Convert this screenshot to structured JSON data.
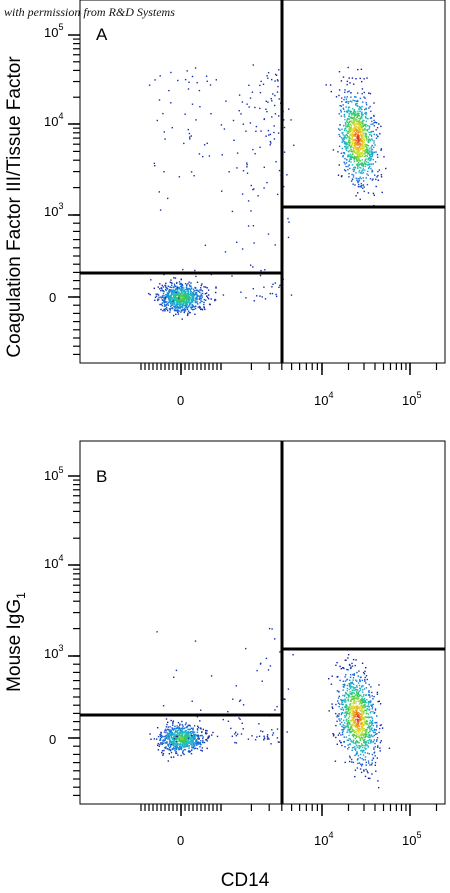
{
  "credit": "with permission from R&D Systems",
  "shared_x_label": "CD14",
  "chart_data": [
    {
      "type": "scatter",
      "panel": "A",
      "ylabel": "Coagulation Factor III/Tissue Factor",
      "xlabel": "CD14",
      "x_scale": "biexponential",
      "y_scale": "biexponential",
      "x_ticks": [
        {
          "value": 0,
          "label": "0"
        },
        {
          "value": 10000,
          "label": "10",
          "exp": "4"
        },
        {
          "value": 100000,
          "label": "10",
          "exp": "5"
        }
      ],
      "y_ticks": [
        {
          "value": 0,
          "label": "0"
        },
        {
          "value": 1000,
          "label": "10",
          "exp": "3"
        },
        {
          "value": 10000,
          "label": "10",
          "exp": "4"
        },
        {
          "value": 100000,
          "label": "10",
          "exp": "5"
        }
      ],
      "quadrant_gates": {
        "x_divider": 5000,
        "y_divider_left": 400,
        "y_divider_right": 1200
      },
      "populations": [
        {
          "name": "CD14- cells",
          "center_x": 0,
          "center_y": 0,
          "spread": "compact",
          "events": 800
        },
        {
          "name": "CD14+ cells",
          "center_x": 25000,
          "center_y": 7000,
          "spread": "elongated vertical",
          "events": 1000
        },
        {
          "name": "scatter",
          "x_range": [
            -800,
            4500
          ],
          "y_range": [
            0,
            40000
          ],
          "events": 220
        }
      ]
    },
    {
      "type": "scatter",
      "panel": "B",
      "ylabel": "Mouse IgG1",
      "xlabel": "CD14",
      "x_scale": "biexponential",
      "y_scale": "biexponential",
      "x_ticks": [
        {
          "value": 0,
          "label": "0"
        },
        {
          "value": 10000,
          "label": "10",
          "exp": "4"
        },
        {
          "value": 100000,
          "label": "10",
          "exp": "5"
        }
      ],
      "y_ticks": [
        {
          "value": 0,
          "label": "0"
        },
        {
          "value": 1000,
          "label": "10",
          "exp": "3"
        },
        {
          "value": 10000,
          "label": "10",
          "exp": "4"
        },
        {
          "value": 100000,
          "label": "10",
          "exp": "5"
        }
      ],
      "quadrant_gates": {
        "x_divider": 5000,
        "y_divider_left": 400,
        "y_divider_right": 1200
      },
      "populations": [
        {
          "name": "CD14- cells",
          "center_x": 0,
          "center_y": 0,
          "spread": "compact",
          "events": 700
        },
        {
          "name": "CD14+ cells",
          "center_x": 25000,
          "center_y": 250,
          "spread": "elongated vertical",
          "events": 1000
        },
        {
          "name": "scatter",
          "x_range": [
            -800,
            4500
          ],
          "y_range": [
            0,
            2000
          ],
          "events": 90
        }
      ]
    }
  ]
}
